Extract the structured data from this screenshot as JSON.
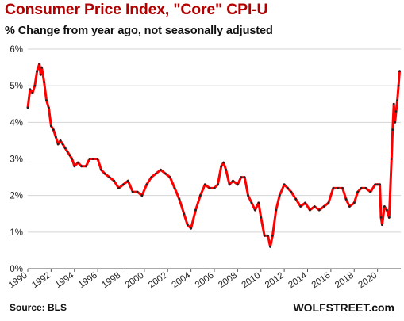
{
  "title": "Consumer Price Index, \"Core\" CPI-U",
  "subtitle": "% Change from year ago, not seasonally adjusted",
  "source": "Source: BLS",
  "brand": "WOLFSTREET.com",
  "colors": {
    "title": "#b00000",
    "line": "#ff0000",
    "marker": "#222222",
    "grid": "#d4d4d4"
  },
  "chart_data": {
    "type": "line",
    "title": "Consumer Price Index, \"Core\" CPI-U",
    "subtitle": "% Change from year ago, not seasonally adjusted",
    "xlabel": "",
    "ylabel": "",
    "xlim": [
      1990,
      2022
    ],
    "ylim": [
      0,
      6
    ],
    "y_ticks": [
      "0%",
      "1%",
      "2%",
      "3%",
      "4%",
      "5%",
      "6%"
    ],
    "x_ticks": [
      "1990",
      "1992",
      "1994",
      "1996",
      "1998",
      "2000",
      "2002",
      "2004",
      "2006",
      "2008",
      "2010",
      "2012",
      "2014",
      "2016",
      "2018",
      "2020"
    ],
    "grid": "horizontal",
    "legend": "none",
    "series": [
      {
        "x": [
          1990.0,
          1990.2,
          1990.4,
          1990.6,
          1990.8,
          1991.0,
          1991.1,
          1991.2,
          1991.4,
          1991.6,
          1991.8,
          1992.0,
          1992.2,
          1992.4,
          1992.6,
          1992.8,
          1993.0,
          1993.2,
          1993.4,
          1993.6,
          1993.8,
          1994.0,
          1994.3,
          1994.6,
          1995.0,
          1995.3,
          1995.6,
          1996.0,
          1996.3,
          1996.6,
          1997.0,
          1997.4,
          1997.8,
          1998.2,
          1998.6,
          1999.0,
          1999.4,
          1999.8,
          2000.2,
          2000.6,
          2001.0,
          2001.4,
          2001.8,
          2002.2,
          2002.6,
          2003.0,
          2003.4,
          2003.7,
          2004.0,
          2004.4,
          2004.8,
          2005.2,
          2005.6,
          2006.0,
          2006.3,
          2006.6,
          2006.8,
          2007.0,
          2007.3,
          2007.6,
          2008.0,
          2008.3,
          2008.6,
          2008.9,
          2009.2,
          2009.5,
          2009.8,
          2010.0,
          2010.3,
          2010.6,
          2010.8,
          2011.0,
          2011.3,
          2011.6,
          2012.0,
          2012.3,
          2012.6,
          2013.0,
          2013.4,
          2013.8,
          2014.2,
          2014.6,
          2015.0,
          2015.4,
          2015.8,
          2016.2,
          2016.6,
          2017.0,
          2017.3,
          2017.6,
          2018.0,
          2018.3,
          2018.6,
          2019.0,
          2019.4,
          2019.8,
          2020.0,
          2020.2,
          2020.3,
          2020.4,
          2020.6,
          2020.8,
          2021.0,
          2021.2,
          2021.3,
          2021.4,
          2021.5,
          2021.6,
          2021.7,
          2021.8,
          2021.9
        ],
        "y": [
          4.4,
          4.9,
          4.8,
          5.0,
          5.4,
          5.6,
          5.3,
          5.5,
          5.1,
          4.6,
          4.4,
          3.9,
          3.8,
          3.6,
          3.4,
          3.5,
          3.4,
          3.3,
          3.2,
          3.1,
          3.0,
          2.8,
          2.9,
          2.8,
          2.8,
          3.0,
          3.0,
          3.0,
          2.7,
          2.6,
          2.5,
          2.4,
          2.2,
          2.3,
          2.4,
          2.1,
          2.1,
          2.0,
          2.3,
          2.5,
          2.6,
          2.7,
          2.6,
          2.5,
          2.2,
          1.9,
          1.5,
          1.2,
          1.1,
          1.6,
          2.0,
          2.3,
          2.2,
          2.2,
          2.3,
          2.8,
          2.9,
          2.7,
          2.3,
          2.4,
          2.3,
          2.5,
          2.5,
          2.0,
          1.8,
          1.6,
          1.8,
          1.4,
          0.9,
          0.9,
          0.6,
          0.9,
          1.6,
          2.0,
          2.3,
          2.2,
          2.1,
          1.9,
          1.7,
          1.8,
          1.6,
          1.7,
          1.6,
          1.7,
          1.8,
          2.2,
          2.2,
          2.2,
          1.9,
          1.7,
          1.8,
          2.1,
          2.2,
          2.2,
          2.1,
          2.3,
          2.3,
          2.3,
          1.4,
          1.2,
          1.7,
          1.6,
          1.4,
          3.0,
          3.8,
          4.5,
          4.0,
          4.3,
          4.6,
          5.0,
          5.4
        ]
      }
    ]
  }
}
